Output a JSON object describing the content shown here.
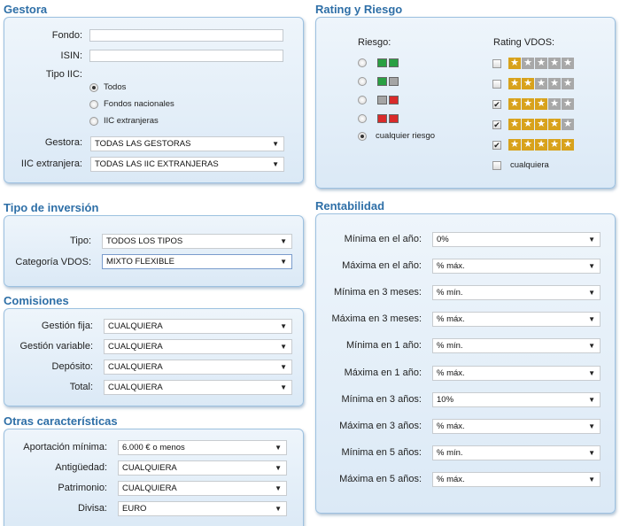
{
  "gestora": {
    "title": "Gestora",
    "fondo_label": "Fondo:",
    "isin_label": "ISIN:",
    "tipo_iic_label": "Tipo IIC:",
    "tipo_iic_options": [
      "Todos",
      "Fondos nacionales",
      "IIC extranjeras"
    ],
    "tipo_iic_selected": 0,
    "gestora_label": "Gestora:",
    "gestora_value": "TODAS LAS GESTORAS",
    "iic_extranjera_label": "IIC extranjera:",
    "iic_extranjera_value": "TODAS LAS IIC EXTRANJERAS"
  },
  "rating": {
    "title": "Rating y Riesgo",
    "riesgo_header": "Riesgo:",
    "rating_header": "Rating VDOS:",
    "riesgo_options": [
      {
        "colors": [
          "#2aa043",
          "#2aa043"
        ]
      },
      {
        "colors": [
          "#2aa043",
          "#a5a5a5"
        ]
      },
      {
        "colors": [
          "#a5a5a5",
          "#d92b2b"
        ]
      },
      {
        "colors": [
          "#d92b2b",
          "#d92b2b"
        ]
      }
    ],
    "riesgo_any_label": "cualquier riesgo",
    "riesgo_selected": 4,
    "rating_rows": [
      {
        "stars": 1,
        "checked": false
      },
      {
        "stars": 2,
        "checked": false
      },
      {
        "stars": 3,
        "checked": true
      },
      {
        "stars": 4,
        "checked": true
      },
      {
        "stars": 5,
        "checked": true
      }
    ],
    "rating_any_label": "cualquiera",
    "rating_any_checked": false,
    "star_glyph": "★",
    "check_glyph": "✔"
  },
  "tipo_inversion": {
    "title": "Tipo de inversión",
    "tipo_label": "Tipo:",
    "tipo_value": "TODOS LOS TIPOS",
    "categoria_label": "Categoría VDOS:",
    "categoria_value": "MIXTO FLEXIBLE"
  },
  "comisiones": {
    "title": "Comisiones",
    "rows": [
      {
        "label": "Gestión fija:",
        "value": "CUALQUIERA"
      },
      {
        "label": "Gestión variable:",
        "value": "CUALQUIERA"
      },
      {
        "label": "Depósito:",
        "value": "CUALQUIERA"
      },
      {
        "label": "Total:",
        "value": "CUALQUIERA"
      }
    ]
  },
  "otras": {
    "title": "Otras características",
    "rows": [
      {
        "label": "Aportación mínima:",
        "value": "6.000 € o menos"
      },
      {
        "label": "Antigüedad:",
        "value": "CUALQUIERA"
      },
      {
        "label": "Patrimonio:",
        "value": "CUALQUIERA"
      },
      {
        "label": "Divisa:",
        "value": "EURO"
      }
    ]
  },
  "rentabilidad": {
    "title": "Rentabilidad",
    "rows": [
      {
        "label": "Mínima en el año:",
        "value": "0%"
      },
      {
        "label": "Máxima en el año:",
        "value": "% máx."
      },
      {
        "label": "Mínima en 3 meses:",
        "value": "% mín."
      },
      {
        "label": "Máxima en 3 meses:",
        "value": "% máx."
      },
      {
        "label": "Mínima en 1 año:",
        "value": "% mín."
      },
      {
        "label": "Máxima en 1 año:",
        "value": "% máx."
      },
      {
        "label": "Mínima en 3 años:",
        "value": "10%"
      },
      {
        "label": "Máxima en 3 años:",
        "value": "% máx."
      },
      {
        "label": "Mínima en 5 años:",
        "value": "% mín."
      },
      {
        "label": "Máxima en 5 años:",
        "value": "% máx."
      }
    ]
  },
  "arrow_glyph": "▼"
}
